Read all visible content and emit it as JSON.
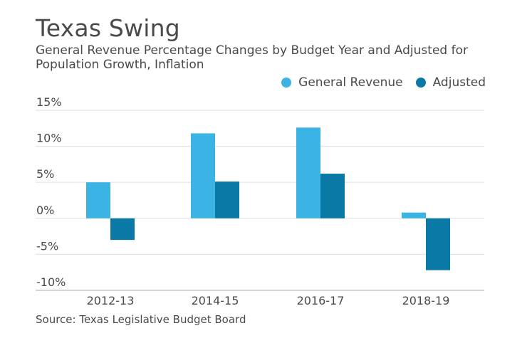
{
  "colors": {
    "general_revenue": "#3bb4e5",
    "adjusted": "#0b79a6",
    "gridline": "#e3e3e3",
    "axis": "#bdbdbd",
    "text": "#4a4a4a"
  },
  "chart_data": {
    "type": "bar",
    "title": "Texas Swing",
    "subtitle": "General Revenue Percentage Changes by Budget Year and Adjusted for Population Growth, Inflation",
    "categories": [
      "2012-13",
      "2014-15",
      "2016-17",
      "2018-19"
    ],
    "series": [
      {
        "name": "General Revenue",
        "values": [
          5.0,
          11.8,
          12.6,
          0.8
        ]
      },
      {
        "name": "Adjusted",
        "values": [
          -3.0,
          5.1,
          6.2,
          -7.2
        ]
      }
    ],
    "yticks": [
      15,
      10,
      5,
      0,
      -5,
      -10
    ],
    "ytick_labels": [
      "15%",
      "10%",
      "5%",
      "0%",
      "-5%",
      "-10%"
    ],
    "ylim": [
      -10,
      15
    ],
    "xlabel": "",
    "ylabel": "",
    "legend_position": "top-right",
    "grid": true
  },
  "source": "Source: Texas Legislative Budget Board"
}
